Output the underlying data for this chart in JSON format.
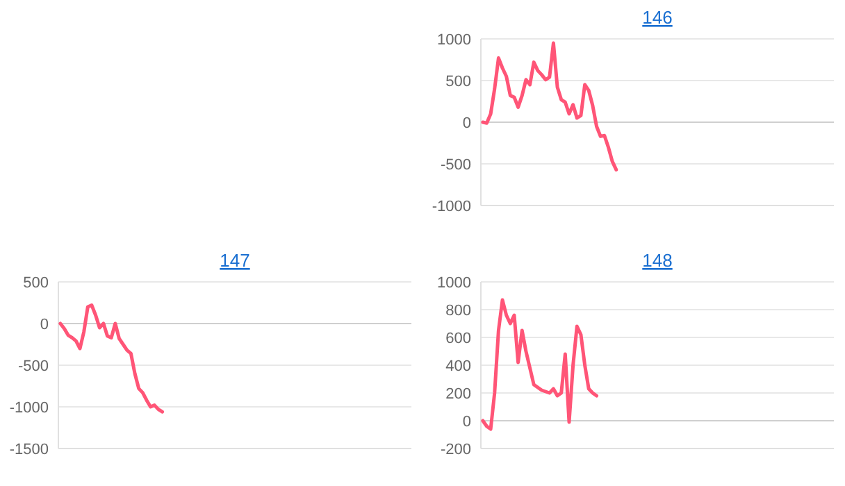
{
  "chart_data": [
    {
      "type": "line",
      "title": "146",
      "categories": [
        null,
        null,
        null,
        null,
        null,
        null,
        null,
        null,
        null,
        null,
        null,
        null,
        null,
        null,
        null,
        null,
        null,
        null,
        null,
        null,
        null,
        null,
        null,
        null,
        null,
        null,
        null,
        null,
        null,
        null,
        null,
        null,
        null,
        null,
        null,
        null,
        null,
        null,
        null,
        null,
        null,
        null,
        null,
        null,
        null,
        null,
        null,
        null,
        null,
        null,
        null,
        null,
        null,
        null,
        null,
        null,
        null,
        null,
        null,
        null,
        null,
        null,
        null,
        null,
        null,
        null,
        null,
        null,
        null,
        null,
        null,
        null,
        null,
        null,
        null,
        null,
        null,
        null,
        null,
        null,
        null,
        null,
        null,
        null,
        null,
        null,
        null,
        null,
        null,
        null
      ],
      "series": [
        {
          "color": "#ff5577",
          "values": [
            0,
            -10,
            100,
            400,
            770,
            650,
            550,
            320,
            300,
            180,
            320,
            510,
            450,
            720,
            620,
            570,
            510,
            540,
            950,
            420,
            270,
            240,
            100,
            210,
            50,
            80,
            450,
            380,
            200,
            -50,
            -170,
            -160,
            -300,
            -470,
            -570,
            null,
            null,
            null,
            null,
            null,
            null,
            null,
            null,
            null,
            null,
            null,
            null,
            null,
            null,
            null,
            null,
            null,
            null,
            null,
            null,
            null,
            null,
            null,
            null,
            null,
            null,
            null,
            null,
            null,
            null,
            null,
            null,
            null,
            null,
            null,
            null,
            null,
            null,
            null,
            null,
            null,
            null,
            null,
            null,
            null,
            null,
            null,
            null,
            null,
            null,
            null,
            null,
            null,
            null,
            null
          ]
        }
      ],
      "ylim": [
        -1000,
        1000
      ],
      "yticks": [
        -1000,
        -500,
        0,
        500,
        1000
      ],
      "grid": "y",
      "tick_labels": "y",
      "marker": "none",
      "line_style": "solid"
    },
    {
      "type": "line",
      "title": "147",
      "categories": [
        null,
        null,
        null,
        null,
        null,
        null,
        null,
        null,
        null,
        null,
        null,
        null,
        null,
        null,
        null,
        null,
        null,
        null,
        null,
        null,
        null,
        null,
        null,
        null,
        null,
        null,
        null,
        null,
        null,
        null,
        null,
        null,
        null,
        null,
        null,
        null,
        null,
        null,
        null,
        null,
        null,
        null,
        null,
        null,
        null,
        null,
        null,
        null,
        null,
        null,
        null,
        null,
        null,
        null,
        null,
        null,
        null,
        null,
        null,
        null,
        null,
        null,
        null,
        null,
        null,
        null,
        null,
        null,
        null,
        null,
        null,
        null,
        null,
        null,
        null,
        null,
        null,
        null,
        null,
        null,
        null,
        null,
        null,
        null,
        null,
        null,
        null,
        null,
        null,
        null
      ],
      "series": [
        {
          "color": "#ff5577",
          "values": [
            0,
            -60,
            -140,
            -170,
            -210,
            -300,
            -100,
            200,
            220,
            100,
            -50,
            0,
            -150,
            -170,
            0,
            -180,
            -250,
            -320,
            -360,
            -600,
            -780,
            -830,
            -920,
            -1000,
            -980,
            -1030,
            -1060,
            null,
            null,
            null,
            null,
            null,
            null,
            null,
            null,
            null,
            null,
            null,
            null,
            null,
            null,
            null,
            null,
            null,
            null,
            null,
            null,
            null,
            null,
            null,
            null,
            null,
            null,
            null,
            null,
            null,
            null,
            null,
            null,
            null,
            null,
            null,
            null,
            null,
            null,
            null,
            null,
            null,
            null,
            null,
            null,
            null,
            null,
            null,
            null,
            null,
            null,
            null,
            null,
            null,
            null,
            null,
            null,
            null,
            null,
            null,
            null,
            null,
            null,
            null
          ]
        }
      ],
      "ylim": [
        -1500,
        500
      ],
      "yticks": [
        -1500,
        -1000,
        -500,
        0,
        500
      ],
      "grid": "y",
      "tick_labels": "y",
      "marker": "none",
      "line_style": "solid"
    },
    {
      "type": "line",
      "title": "148",
      "categories": [
        null,
        null,
        null,
        null,
        null,
        null,
        null,
        null,
        null,
        null,
        null,
        null,
        null,
        null,
        null,
        null,
        null,
        null,
        null,
        null,
        null,
        null,
        null,
        null,
        null,
        null,
        null,
        null,
        null,
        null,
        null,
        null,
        null,
        null,
        null,
        null,
        null,
        null,
        null,
        null,
        null,
        null,
        null,
        null,
        null,
        null,
        null,
        null,
        null,
        null,
        null,
        null,
        null,
        null,
        null,
        null,
        null,
        null,
        null,
        null,
        null,
        null,
        null,
        null,
        null,
        null,
        null,
        null,
        null,
        null,
        null,
        null,
        null,
        null,
        null,
        null,
        null,
        null,
        null,
        null,
        null,
        null,
        null,
        null,
        null,
        null,
        null,
        null,
        null,
        null
      ],
      "series": [
        {
          "color": "#ff5577",
          "values": [
            0,
            -40,
            -60,
            200,
            650,
            870,
            760,
            700,
            760,
            420,
            650,
            500,
            380,
            260,
            240,
            220,
            210,
            200,
            230,
            180,
            200,
            480,
            -10,
            400,
            680,
            620,
            400,
            230,
            200,
            180,
            null,
            null,
            null,
            null,
            null,
            null,
            null,
            null,
            null,
            null,
            null,
            null,
            null,
            null,
            null,
            null,
            null,
            null,
            null,
            null,
            null,
            null,
            null,
            null,
            null,
            null,
            null,
            null,
            null,
            null,
            null,
            null,
            null,
            null,
            null,
            null,
            null,
            null,
            null,
            null,
            null,
            null,
            null,
            null,
            null,
            null,
            null,
            null,
            null,
            null,
            null,
            null,
            null,
            null,
            null,
            null,
            null,
            null,
            null,
            null
          ]
        }
      ],
      "ylim": [
        -200,
        1000
      ],
      "yticks": [
        -200,
        0,
        200,
        400,
        600,
        800,
        1000
      ],
      "grid": "y",
      "tick_labels": "y",
      "marker": "none",
      "line_style": "solid"
    }
  ]
}
